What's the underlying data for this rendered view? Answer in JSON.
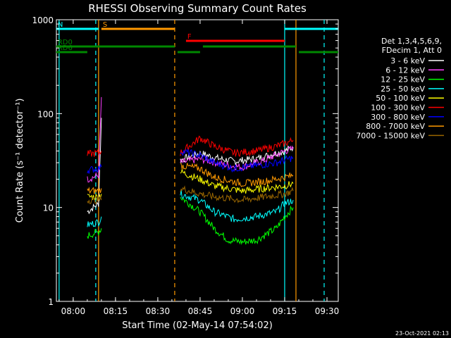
{
  "chart_data": {
    "type": "line",
    "title": "RHESSI Observing Summary Count Rates",
    "xlabel": "Start Time (02-May-14 07:54:02)",
    "ylabel": "Count Rate (s⁻¹ detector⁻¹)",
    "yscale": "log",
    "ylim": [
      1,
      1000
    ],
    "xlim_minutes": [
      "07:54:02",
      "09:34:00"
    ],
    "x_ticks": [
      "08:00",
      "08:15",
      "08:30",
      "08:45",
      "09:00",
      "09:15",
      "09:30"
    ],
    "y_ticks": [
      "1",
      "10",
      "100",
      "1000"
    ],
    "legend": {
      "header_lines": [
        "Det 1,3,4,5,6,9,",
        "FDecim 1, Att 0"
      ],
      "placement": "right"
    },
    "series": [
      {
        "name": "3 - 6 keV",
        "color": "#ffffff",
        "segments": [
          [
            [
              "08:05",
              9
            ],
            [
              "08:09",
              11
            ],
            [
              "08:10",
              90
            ]
          ],
          [
            [
              "08:38",
              32
            ],
            [
              "08:45",
              38
            ],
            [
              "08:50",
              34
            ],
            [
              "08:57",
              31
            ],
            [
              "09:05",
              33
            ],
            [
              "09:12",
              38
            ],
            [
              "09:15",
              40
            ],
            [
              "09:18",
              44
            ]
          ]
        ]
      },
      {
        "name": "6 - 12 keV",
        "color": "#ff40ff",
        "segments": [
          [
            [
              "08:05",
              20
            ],
            [
              "08:09",
              22
            ],
            [
              "08:10",
              150
            ]
          ],
          [
            [
              "08:38",
              30
            ],
            [
              "08:45",
              33
            ],
            [
              "08:55",
              28
            ],
            [
              "09:00",
              27
            ],
            [
              "09:08",
              32
            ],
            [
              "09:15",
              40
            ],
            [
              "09:18",
              42
            ]
          ]
        ]
      },
      {
        "name": "12 - 25 keV",
        "color": "#00ff00",
        "segments": [
          [
            [
              "08:05",
              5
            ],
            [
              "08:09",
              5.5
            ],
            [
              "08:10",
              6
            ]
          ],
          [
            [
              "08:38",
              13
            ],
            [
              "08:45",
              9
            ],
            [
              "08:50",
              6
            ],
            [
              "08:55",
              4.5
            ],
            [
              "09:00",
              4.3
            ],
            [
              "09:05",
              4.5
            ],
            [
              "09:12",
              6
            ],
            [
              "09:15",
              8
            ],
            [
              "09:18",
              10
            ]
          ]
        ]
      },
      {
        "name": "25 - 50 keV",
        "color": "#00ffff",
        "segments": [
          [
            [
              "08:05",
              6.5
            ],
            [
              "08:09",
              7
            ],
            [
              "08:10",
              8
            ]
          ],
          [
            [
              "08:38",
              14
            ],
            [
              "08:45",
              12
            ],
            [
              "08:50",
              9
            ],
            [
              "08:57",
              7.5
            ],
            [
              "09:05",
              8
            ],
            [
              "09:12",
              9
            ],
            [
              "09:15",
              11
            ],
            [
              "09:18",
              12
            ]
          ]
        ]
      },
      {
        "name": "50 - 100 keV",
        "color": "#ffff00",
        "segments": [
          [
            [
              "08:05",
              13
            ],
            [
              "08:09",
              13
            ],
            [
              "08:10",
              14
            ]
          ],
          [
            [
              "08:38",
              24
            ],
            [
              "08:45",
              20
            ],
            [
              "08:50",
              17
            ],
            [
              "09:00",
              15
            ],
            [
              "09:08",
              16
            ],
            [
              "09:15",
              17
            ],
            [
              "09:18",
              18
            ]
          ]
        ]
      },
      {
        "name": "100 - 300 keV",
        "color": "#ff0000",
        "segments": [
          [
            [
              "08:05",
              37
            ],
            [
              "08:09",
              38
            ],
            [
              "08:10",
              40
            ]
          ],
          [
            [
              "08:38",
              38
            ],
            [
              "08:45",
              55
            ],
            [
              "08:50",
              45
            ],
            [
              "08:57",
              38
            ],
            [
              "09:05",
              40
            ],
            [
              "09:12",
              45
            ],
            [
              "09:15",
              48
            ],
            [
              "09:18",
              52
            ]
          ]
        ]
      },
      {
        "name": "300 - 800 keV",
        "color": "#0000ff",
        "segments": [
          [
            [
              "08:05",
              25
            ],
            [
              "08:09",
              26
            ],
            [
              "08:10",
              27
            ]
          ],
          [
            [
              "08:38",
              40
            ],
            [
              "08:45",
              36
            ],
            [
              "08:50",
              30
            ],
            [
              "08:57",
              26
            ],
            [
              "09:05",
              28
            ],
            [
              "09:12",
              30
            ],
            [
              "09:15",
              32
            ],
            [
              "09:18",
              34
            ]
          ]
        ]
      },
      {
        "name": "800 - 7000 keV",
        "color": "#ff9900",
        "segments": [
          [
            [
              "08:05",
              15
            ],
            [
              "08:09",
              15
            ],
            [
              "08:10",
              16
            ]
          ],
          [
            [
              "08:38",
              28
            ],
            [
              "08:45",
              26
            ],
            [
              "08:50",
              21
            ],
            [
              "09:00",
              18
            ],
            [
              "09:08",
              19
            ],
            [
              "09:15",
              21
            ],
            [
              "09:18",
              22
            ]
          ]
        ]
      },
      {
        "name": "7000 - 15000 keV",
        "color": "#996600",
        "segments": [
          [
            [
              "08:05",
              12
            ],
            [
              "08:09",
              12
            ],
            [
              "08:10",
              12
            ]
          ],
          [
            [
              "08:38",
              16
            ],
            [
              "08:45",
              14
            ],
            [
              "08:50",
              13
            ],
            [
              "09:00",
              12
            ],
            [
              "09:08",
              13
            ],
            [
              "09:15",
              14
            ],
            [
              "09:18",
              15
            ]
          ]
        ]
      }
    ],
    "flag_bars": [
      {
        "label": "S",
        "color": "#ff9900",
        "start": "08:10",
        "end": "08:36",
        "level": "upper"
      },
      {
        "label": "N",
        "color": "#00ffff",
        "start": "07:54",
        "end": "08:09",
        "level": "upper"
      },
      {
        "label": "",
        "color": "#00ffff",
        "start": "09:15",
        "end": "09:34",
        "level": "upper"
      },
      {
        "label": "F",
        "color": "#ff0000",
        "start": "08:40",
        "end": "09:15",
        "level": "middle"
      },
      {
        "label": "RD0",
        "color": "#008800",
        "start": "07:54",
        "end": "08:36",
        "level": "lower"
      },
      {
        "label": "",
        "color": "#008800",
        "start": "08:37",
        "end": "08:45",
        "level": "lower2"
      },
      {
        "label": "",
        "color": "#008800",
        "start": "08:46",
        "end": "09:19",
        "level": "lower"
      },
      {
        "label": "RD6",
        "color": "#008800",
        "start": "07:54",
        "end": "08:05",
        "level": "lower2"
      },
      {
        "label": "",
        "color": "#008800",
        "start": "09:20",
        "end": "09:34",
        "level": "lower2"
      }
    ],
    "vertical_markers": [
      {
        "time": "07:55",
        "color": "#00ffff",
        "style": "solid"
      },
      {
        "time": "08:08",
        "color": "#00ffff",
        "style": "dashed"
      },
      {
        "time": "08:09",
        "color": "#ff9900",
        "style": "solid"
      },
      {
        "time": "08:36",
        "color": "#ff9900",
        "style": "dashed"
      },
      {
        "time": "09:15",
        "color": "#00ffff",
        "style": "solid"
      },
      {
        "time": "09:19",
        "color": "#ff9900",
        "style": "solid"
      },
      {
        "time": "09:29",
        "color": "#00ffff",
        "style": "dashed"
      }
    ]
  },
  "footer": {
    "timestamp": "23-Oct-2021 02:13"
  }
}
